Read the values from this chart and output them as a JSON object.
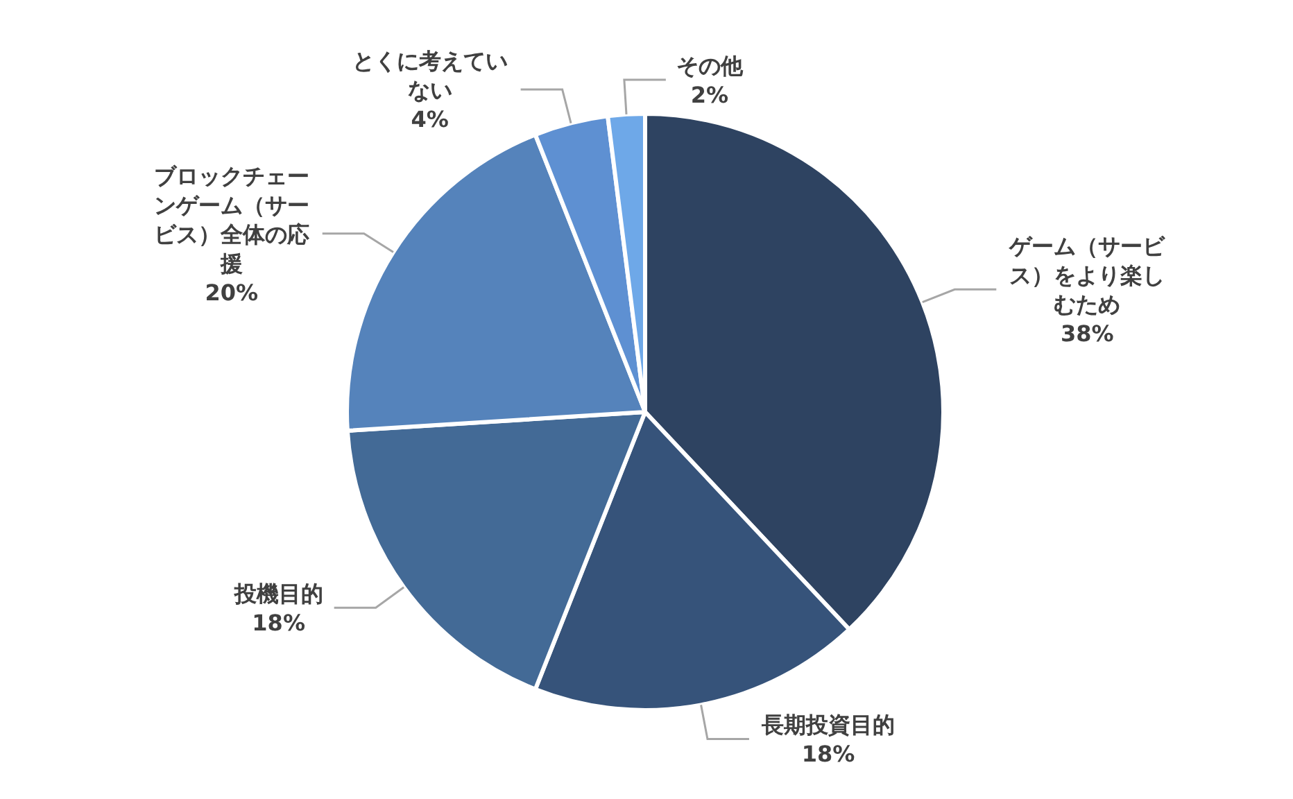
{
  "chart_data": {
    "type": "pie",
    "categories": [
      "ゲーム（サービス）をより楽しむため",
      "長期投資目的",
      "投機目的",
      "ブロックチェーンゲーム（サービス）全体の応援",
      "とくに考えていない",
      "その他"
    ],
    "values": [
      38,
      18,
      18,
      20,
      4,
      2
    ],
    "value_labels": [
      "38%",
      "18%",
      "18%",
      "20%",
      "4%",
      "2%"
    ],
    "colors": [
      "#2e4361",
      "#36537a",
      "#436a96",
      "#5583bb",
      "#5e90d2",
      "#6ea8e8"
    ]
  }
}
